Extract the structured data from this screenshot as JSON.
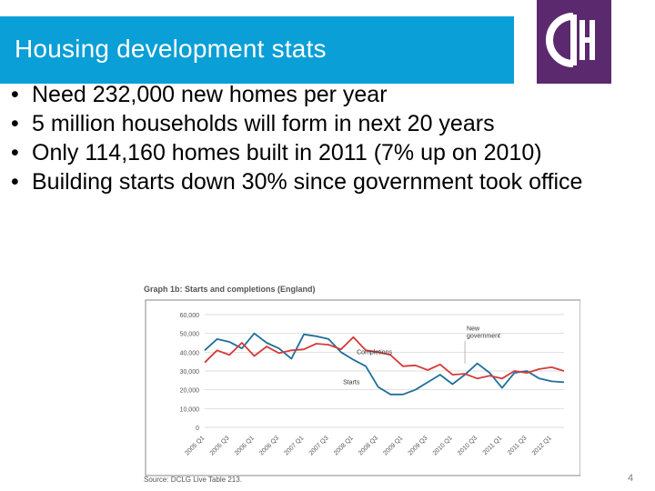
{
  "slide": {
    "title": "Housing development stats",
    "page_number": "4",
    "accent_color": "#0a9fd6",
    "logo_color": "#5b2a6e"
  },
  "logo": {
    "icon": "cih-logo"
  },
  "bullets": [
    {
      "text": "Need 232,000 new homes per year"
    },
    {
      "text": "5 million households will form in next 20 years"
    },
    {
      "text": "Only 114,160 homes built in 2011 (7% up on 2010)"
    },
    {
      "text": "Building starts down 30% since government took office"
    }
  ],
  "bullet_glyph": "•",
  "chart_data": {
    "type": "line",
    "title": "Graph 1b: Starts and completions (England)",
    "source": "Source: DCLG Live Table 213.",
    "ylim": [
      0,
      60000
    ],
    "yticks": [
      "0",
      "10,000",
      "20,000",
      "30,000",
      "40,000",
      "50,000",
      "60,000"
    ],
    "categories": [
      "2005 Q1",
      "",
      "2005 Q3",
      "",
      "2006 Q1",
      "",
      "2006 Q3",
      "",
      "2007 Q1",
      "",
      "2007 Q3",
      "",
      "2008 Q1",
      "",
      "2008 Q3",
      "",
      "2009 Q1",
      "",
      "2009 Q3",
      "",
      "2010 Q1",
      "",
      "2010 Q3",
      "",
      "2011 Q1",
      "",
      "2011 Q3",
      "",
      "2012 Q1",
      ""
    ],
    "xtick_labels": [
      "2005 Q1",
      "2005 Q3",
      "2006 Q1",
      "2006 Q3",
      "2007 Q1",
      "2007 Q3",
      "2008 Q1",
      "2008 Q3",
      "2009 Q1",
      "2009 Q3",
      "2010 Q1",
      "2010 Q3",
      "2011 Q1",
      "2011 Q3",
      "2012 Q1"
    ],
    "series": [
      {
        "name": "Starts",
        "color": "#1f6f9a",
        "values": [
          41000,
          47000,
          45500,
          42000,
          50000,
          45000,
          42000,
          36500,
          49500,
          48500,
          47000,
          40000,
          36000,
          32500,
          21500,
          17500,
          17500,
          20000,
          24000,
          28000,
          23000,
          28000,
          34000,
          29000,
          21000,
          29000,
          30000,
          26000,
          24500,
          24000
        ]
      },
      {
        "name": "Completions",
        "color": "#d33b3b",
        "values": [
          34500,
          41000,
          38500,
          45000,
          38000,
          43000,
          39500,
          41000,
          41500,
          44500,
          44000,
          41500,
          48000,
          41000,
          40000,
          38500,
          32500,
          33000,
          30500,
          33500,
          28000,
          28500,
          26000,
          27500,
          26000,
          30000,
          29000,
          31000,
          32000,
          30000
        ]
      }
    ],
    "annotations": [
      {
        "text": "Completions"
      },
      {
        "text": "Starts"
      },
      {
        "text": "New government"
      }
    ],
    "annotation_event": {
      "label": "New government",
      "category_index": 21
    }
  }
}
